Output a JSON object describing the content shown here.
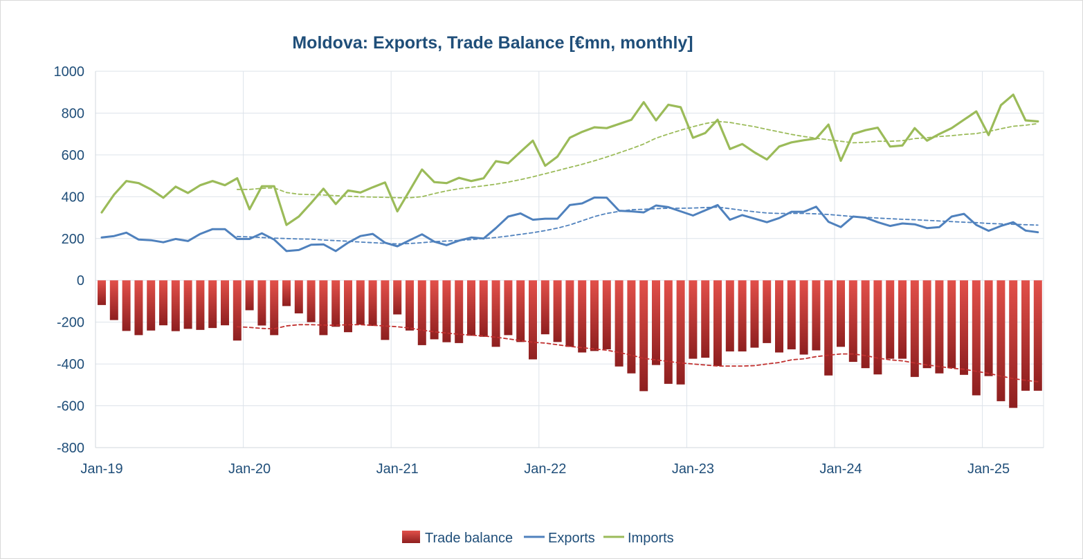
{
  "chart_data": {
    "type": "bar",
    "title": "Moldova: Exports, Trade Balance [€mn, monthly]",
    "xlabel": "",
    "ylabel": "",
    "ylim": [
      -800,
      1000
    ],
    "yticks": [
      "1000",
      "800",
      "600",
      "400",
      "200",
      "0",
      "-200",
      "-400",
      "-600",
      "-800"
    ],
    "xtick_labels": [
      "Jan-19",
      "Jan-20",
      "Jan-21",
      "Jan-22",
      "Jan-23",
      "Jan-24",
      "Jan-25"
    ],
    "grid": true,
    "legend_position": "bottom",
    "colors": {
      "trade_balance": "#c0302f",
      "exports": "#4f81bd",
      "imports": "#9bbb59"
    },
    "series": [
      {
        "name": "Trade balance",
        "type": "bar",
        "values": [
          -118,
          -190,
          -242,
          -262,
          -240,
          -215,
          -243,
          -232,
          -237,
          -228,
          -215,
          -288,
          -143,
          -216,
          -262,
          -123,
          -158,
          -200,
          -262,
          -222,
          -248,
          -212,
          -218,
          -285,
          -163,
          -240,
          -310,
          -282,
          -296,
          -300,
          -265,
          -270,
          -318,
          -262,
          -295,
          -378,
          -258,
          -295,
          -318,
          -345,
          -338,
          -330,
          -412,
          -445,
          -530,
          -405,
          -495,
          -498,
          -375,
          -370,
          -410,
          -340,
          -340,
          -322,
          -300,
          -345,
          -330,
          -355,
          -335,
          -455,
          -318,
          -390,
          -420,
          -450,
          -375,
          -375,
          -462,
          -420,
          -445,
          -420,
          -452,
          -550,
          -458,
          -578,
          -610,
          -528,
          -528
        ]
      },
      {
        "name": "Exports",
        "type": "line",
        "values": [
          205,
          212,
          228,
          195,
          192,
          182,
          198,
          188,
          222,
          245,
          245,
          198,
          198,
          225,
          195,
          140,
          145,
          170,
          172,
          140,
          180,
          212,
          222,
          180,
          163,
          192,
          220,
          185,
          168,
          190,
          205,
          200,
          250,
          305,
          320,
          290,
          295,
          295,
          360,
          368,
          396,
          395,
          333,
          330,
          325,
          358,
          350,
          330,
          310,
          335,
          360,
          290,
          312,
          295,
          278,
          298,
          328,
          328,
          352,
          280,
          255,
          305,
          300,
          278,
          260,
          272,
          268,
          250,
          255,
          305,
          318,
          265,
          237,
          260,
          278,
          238,
          230
        ]
      },
      {
        "name": "Exports trend",
        "type": "line",
        "values": [
          null,
          null,
          null,
          null,
          null,
          null,
          null,
          null,
          null,
          null,
          null,
          210,
          208,
          205,
          202,
          200,
          198,
          197,
          193,
          190,
          187,
          183,
          180,
          177,
          174,
          176,
          180,
          185,
          188,
          191,
          195,
          200,
          205,
          212,
          220,
          228,
          238,
          250,
          265,
          285,
          305,
          320,
          330,
          338,
          340,
          343,
          345,
          345,
          346,
          348,
          350,
          343,
          335,
          328,
          322,
          320,
          320,
          320,
          318,
          315,
          310,
          305,
          302,
          298,
          295,
          292,
          290,
          287,
          284,
          281,
          278,
          276,
          272,
          270,
          268,
          266,
          264
        ]
      },
      {
        "name": "Imports",
        "type": "line",
        "values": [
          325,
          410,
          475,
          465,
          435,
          395,
          448,
          418,
          455,
          475,
          455,
          488,
          340,
          450,
          450,
          265,
          305,
          370,
          438,
          365,
          430,
          420,
          445,
          468,
          330,
          430,
          530,
          470,
          465,
          490,
          475,
          488,
          570,
          560,
          615,
          668,
          548,
          592,
          682,
          710,
          732,
          728,
          748,
          768,
          852,
          765,
          840,
          828,
          682,
          705,
          768,
          628,
          652,
          612,
          578,
          640,
          660,
          670,
          678,
          745,
          572,
          700,
          718,
          730,
          640,
          645,
          728,
          668,
          700,
          728,
          768,
          808,
          695,
          838,
          888,
          765,
          760
        ]
      },
      {
        "name": "Imports trend",
        "type": "line",
        "values": [
          null,
          null,
          null,
          null,
          null,
          null,
          null,
          null,
          null,
          null,
          null,
          435,
          435,
          440,
          442,
          420,
          412,
          410,
          408,
          405,
          402,
          400,
          398,
          397,
          395,
          395,
          400,
          415,
          428,
          438,
          445,
          452,
          460,
          470,
          482,
          495,
          510,
          525,
          540,
          555,
          572,
          590,
          610,
          630,
          652,
          680,
          700,
          718,
          735,
          750,
          760,
          755,
          745,
          735,
          722,
          710,
          698,
          688,
          680,
          672,
          665,
          658,
          660,
          665,
          665,
          668,
          678,
          682,
          688,
          692,
          698,
          702,
          712,
          725,
          737,
          742,
          750
        ]
      },
      {
        "name": "Trade balance trend",
        "type": "line",
        "values": [
          null,
          null,
          null,
          null,
          null,
          null,
          null,
          null,
          null,
          null,
          null,
          -222,
          -225,
          -230,
          -232,
          -218,
          -212,
          -212,
          -214,
          -215,
          -212,
          -212,
          -215,
          -218,
          -222,
          -228,
          -238,
          -246,
          -252,
          -258,
          -262,
          -266,
          -272,
          -280,
          -288,
          -296,
          -300,
          -308,
          -316,
          -322,
          -328,
          -334,
          -345,
          -358,
          -373,
          -380,
          -388,
          -395,
          -400,
          -405,
          -410,
          -410,
          -410,
          -408,
          -400,
          -393,
          -380,
          -375,
          -365,
          -358,
          -352,
          -352,
          -360,
          -372,
          -380,
          -385,
          -395,
          -405,
          -412,
          -420,
          -425,
          -435,
          -445,
          -458,
          -470,
          -478,
          -485
        ]
      }
    ],
    "legend": [
      {
        "label": "Trade balance",
        "kind": "bar",
        "color": "#c0302f"
      },
      {
        "label": "Exports",
        "kind": "line",
        "color": "#4f81bd"
      },
      {
        "label": "Imports",
        "kind": "line",
        "color": "#9bbb59"
      }
    ]
  }
}
